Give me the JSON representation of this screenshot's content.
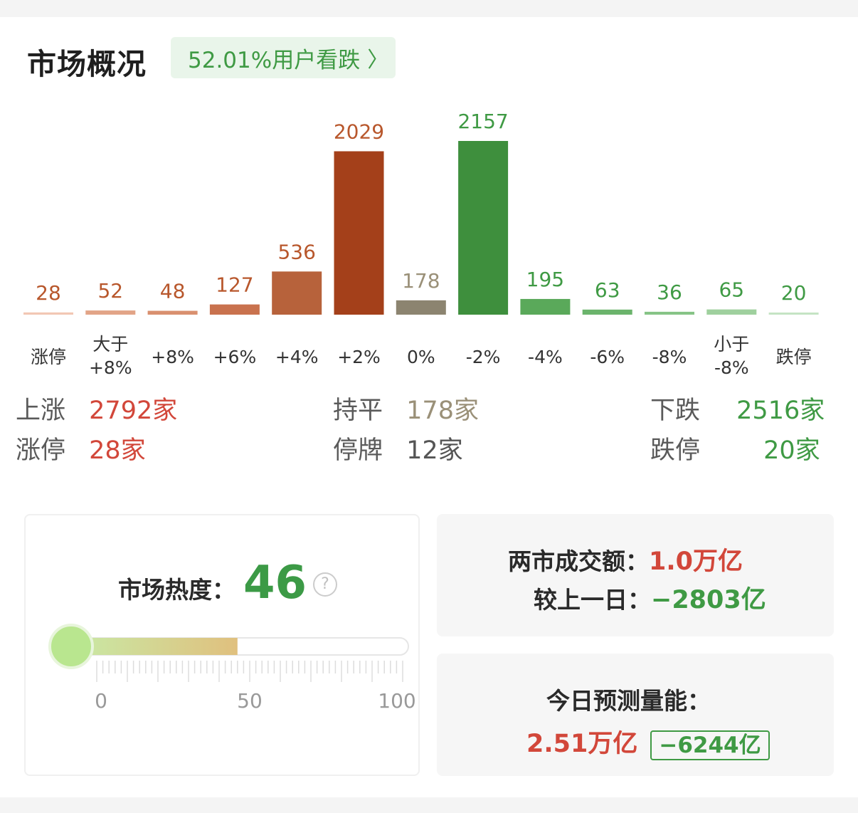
{
  "header": {
    "title": "市场概况",
    "sentiment_label": "52.01%用户看跌"
  },
  "chart_data": {
    "type": "bar",
    "categories": [
      "涨停",
      "大于\n+8%",
      "+8%",
      "+6%",
      "+4%",
      "+2%",
      "0%",
      "-2%",
      "-4%",
      "-6%",
      "-8%",
      "小于\n-8%",
      "跌停"
    ],
    "values": [
      28,
      52,
      48,
      127,
      536,
      2029,
      178,
      2157,
      195,
      63,
      36,
      65,
      20
    ],
    "bar_colors": [
      "#f2c7b4",
      "#e2a487",
      "#d9906f",
      "#c9724e",
      "#b7623b",
      "#a4401a",
      "#8c8470",
      "#3e8f3d",
      "#5aa95a",
      "#6bb46c",
      "#86c486",
      "#9fd09e",
      "#c5e4c4"
    ],
    "label_colors": [
      "#b8572c",
      "#b8572c",
      "#b8572c",
      "#b8572c",
      "#b8572c",
      "#b8572c",
      "#9a9078",
      "#3f9a44",
      "#3f9a44",
      "#3f9a44",
      "#3f9a44",
      "#3f9a44",
      "#3f9a44"
    ],
    "ylim": [
      0,
      2157
    ]
  },
  "stats": {
    "up_label": "上涨",
    "up_value": "2792家",
    "flat_label": "持平",
    "flat_value": "178家",
    "down_label": "下跌",
    "down_value": "2516家",
    "limit_up_label": "涨停",
    "limit_up_value": "28家",
    "halt_label": "停牌",
    "halt_value": "12家",
    "limit_down_label": "跌停",
    "limit_down_value": "20家"
  },
  "heat": {
    "label": "市场热度：",
    "value": "46",
    "level": 46,
    "help_icon": "question-circle-icon",
    "ticks": [
      "0",
      "50",
      "100"
    ]
  },
  "turnover": {
    "label": "两市成交额：",
    "value": "1.0万亿",
    "diff_label": "较上一日：",
    "diff_value": "−2803亿"
  },
  "forecast": {
    "label": "今日预测量能：",
    "value": "2.51万亿",
    "diff": "−6244亿"
  },
  "colors": {
    "up": "#d2473a",
    "down": "#3f9a44",
    "flat": "#9a9078"
  }
}
